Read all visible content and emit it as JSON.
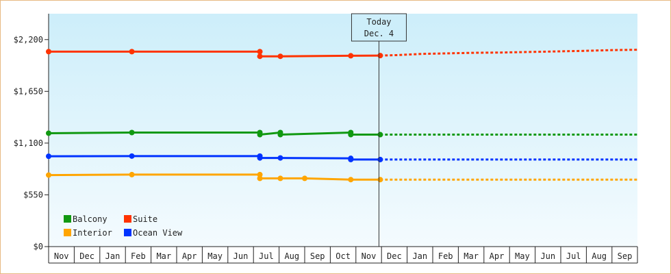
{
  "chart_data": {
    "type": "line",
    "title": "",
    "xlabel": "",
    "ylabel": "",
    "ylim": [
      0,
      2475
    ],
    "y_ticks": [
      0,
      550,
      1100,
      1650,
      2200
    ],
    "y_tick_labels": [
      "$0",
      "$550",
      "$1,100",
      "$1,650",
      "$2,200"
    ],
    "x_tick_labels": [
      "Nov",
      "Dec",
      "Jan",
      "Feb",
      "Mar",
      "Apr",
      "May",
      "Jun",
      "Jul",
      "Aug",
      "Sep",
      "Oct",
      "Nov",
      "Dec",
      "Jan",
      "Feb",
      "Mar",
      "Apr",
      "May",
      "Jun",
      "Jul",
      "Aug",
      "Sep"
    ],
    "today_marker": {
      "line1": "Today",
      "line2": "Dec. 4",
      "month_index": 12.9
    },
    "legend_position": "bottom-left",
    "grid": false,
    "series": [
      {
        "name": "Balcony",
        "color": "#119911",
        "points": [
          [
            0,
            1205
          ],
          [
            3.25,
            1212
          ],
          [
            8.25,
            1212
          ],
          [
            8.25,
            1190
          ],
          [
            9.05,
            1212
          ],
          [
            9.05,
            1190
          ],
          [
            11.8,
            1212
          ],
          [
            11.8,
            1190
          ],
          [
            12.95,
            1190
          ]
        ],
        "forecast": [
          [
            12.95,
            1190
          ],
          [
            23.0,
            1190
          ]
        ]
      },
      {
        "name": "Suite",
        "color": "#ff3300",
        "points": [
          [
            0,
            2072
          ],
          [
            3.25,
            2072
          ],
          [
            8.25,
            2072
          ],
          [
            8.25,
            2022
          ],
          [
            9.05,
            2022
          ],
          [
            11.8,
            2028
          ],
          [
            12.95,
            2030
          ]
        ],
        "forecast": [
          [
            12.95,
            2030
          ],
          [
            13.6,
            2035
          ],
          [
            14.6,
            2048
          ],
          [
            16.7,
            2060
          ],
          [
            17.6,
            2062
          ],
          [
            18.7,
            2068
          ],
          [
            20.9,
            2080
          ],
          [
            22.0,
            2088
          ],
          [
            23.0,
            2092
          ]
        ]
      },
      {
        "name": "Interior",
        "color": "#ffa500",
        "points": [
          [
            0,
            760
          ],
          [
            3.25,
            765
          ],
          [
            8.25,
            765
          ],
          [
            8.25,
            725
          ],
          [
            9.05,
            725
          ],
          [
            10.0,
            725
          ],
          [
            11.8,
            712
          ],
          [
            12.95,
            712
          ]
        ],
        "forecast": [
          [
            12.95,
            712
          ],
          [
            23.0,
            712
          ]
        ]
      },
      {
        "name": "Ocean View",
        "color": "#0033ff",
        "points": [
          [
            0,
            960
          ],
          [
            3.25,
            962
          ],
          [
            8.25,
            962
          ],
          [
            8.25,
            942
          ],
          [
            9.05,
            942
          ],
          [
            11.8,
            938
          ],
          [
            11.8,
            925
          ],
          [
            12.95,
            925
          ]
        ],
        "forecast": [
          [
            12.95,
            925
          ],
          [
            23.0,
            925
          ]
        ]
      }
    ],
    "legend": [
      {
        "name": "Balcony",
        "color": "#119911"
      },
      {
        "name": "Suite",
        "color": "#ff3300"
      },
      {
        "name": "Interior",
        "color": "#ffa500"
      },
      {
        "name": "Ocean View",
        "color": "#0033ff"
      }
    ]
  }
}
